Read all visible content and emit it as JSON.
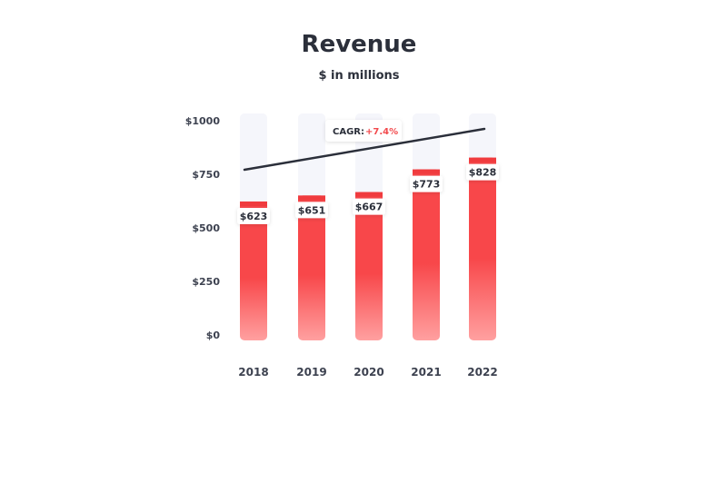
{
  "chart_data": {
    "type": "bar",
    "title": "Revenue",
    "subtitle": "$ in millions",
    "categories": [
      "2018",
      "2019",
      "2020",
      "2021",
      "2022"
    ],
    "values": [
      623,
      651,
      667,
      773,
      828
    ],
    "value_labels": [
      "$623",
      "$651",
      "$667",
      "$773",
      "$828"
    ],
    "ylim": [
      0,
      1000
    ],
    "yticks": [
      0,
      250,
      500,
      750,
      1000
    ],
    "ytick_labels": [
      "$0",
      "$250",
      "$500",
      "$750",
      "$1000"
    ],
    "grid": false,
    "trend_line": {
      "label": "CAGR:",
      "value": "+7.4%"
    },
    "colors": {
      "bar_top": "#f8474a",
      "bar_bottom": "#ffa0a0",
      "bar_track": "#f5f6fb",
      "bar_cap": "#f03b3e",
      "trend_line": "#2b2f3a",
      "cagr_value": "#f24a4d",
      "text": "#2b2f3a"
    }
  }
}
